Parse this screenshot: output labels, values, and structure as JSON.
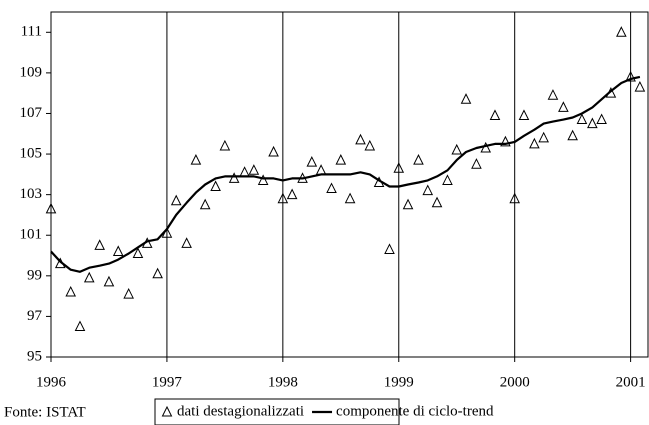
{
  "chart_data": {
    "type": "line",
    "x": [
      1996,
      1996.08,
      1996.17,
      1996.25,
      1996.33,
      1996.42,
      1996.5,
      1996.58,
      1996.67,
      1996.75,
      1996.83,
      1996.92,
      1997,
      1997.08,
      1997.17,
      1997.25,
      1997.33,
      1997.42,
      1997.5,
      1997.58,
      1997.67,
      1997.75,
      1997.83,
      1997.92,
      1998,
      1998.08,
      1998.17,
      1998.25,
      1998.33,
      1998.42,
      1998.5,
      1998.58,
      1998.67,
      1998.75,
      1998.83,
      1998.92,
      1999,
      1999.08,
      1999.17,
      1999.25,
      1999.33,
      1999.42,
      1999.5,
      1999.58,
      1999.67,
      1999.75,
      1999.83,
      1999.92,
      2000,
      2000.08,
      2000.17,
      2000.25,
      2000.33,
      2000.42,
      2000.5,
      2000.58,
      2000.67,
      2000.75,
      2000.83,
      2000.92,
      2001,
      2001.08
    ],
    "series": [
      {
        "name": "dati destagionalizzati",
        "color": "#000000",
        "mode": "markers",
        "values": [
          102.3,
          99.6,
          98.2,
          96.5,
          98.9,
          100.5,
          98.7,
          100.2,
          98.1,
          100.1,
          100.6,
          99.1,
          101.1,
          102.7,
          100.6,
          104.7,
          102.5,
          103.4,
          105.4,
          103.8,
          104.1,
          104.2,
          103.7,
          105.1,
          102.8,
          103.0,
          103.8,
          104.6,
          104.2,
          103.3,
          104.7,
          102.8,
          105.7,
          105.4,
          103.6,
          100.3,
          104.3,
          102.5,
          104.7,
          103.2,
          102.6,
          103.7,
          105.2,
          107.7,
          104.5,
          105.3,
          106.9,
          105.6,
          102.8,
          106.9,
          105.5,
          105.8,
          107.9,
          107.3,
          105.9,
          106.7,
          106.5,
          106.7,
          108.0,
          111.0,
          108.8,
          108.3
        ]
      },
      {
        "name": "componente di ciclo-trend",
        "color": "#000000",
        "mode": "line",
        "values": [
          100.2,
          99.7,
          99.3,
          99.2,
          99.4,
          99.5,
          99.6,
          99.8,
          100.1,
          100.4,
          100.7,
          100.8,
          101.3,
          102.0,
          102.6,
          103.1,
          103.5,
          103.8,
          103.9,
          103.9,
          103.9,
          103.9,
          103.8,
          103.8,
          103.7,
          103.8,
          103.8,
          103.9,
          104.0,
          104.0,
          104.0,
          104.0,
          104.1,
          104.0,
          103.7,
          103.4,
          103.4,
          103.5,
          103.6,
          103.7,
          103.9,
          104.2,
          104.7,
          105.1,
          105.3,
          105.4,
          105.5,
          105.5,
          105.6,
          105.9,
          106.2,
          106.5,
          106.6,
          106.7,
          106.8,
          107.0,
          107.3,
          107.7,
          108.1,
          108.5,
          108.7,
          108.8
        ]
      }
    ],
    "xlim": [
      1996,
      2001.15
    ],
    "xticks": [
      1996,
      1997,
      1998,
      1999,
      2000,
      2001
    ],
    "ylim": [
      95,
      112
    ],
    "yticks": [
      95,
      97,
      99,
      101,
      103,
      105,
      107,
      109,
      111
    ],
    "grid": "x",
    "source": "Fonte: ISTAT"
  }
}
